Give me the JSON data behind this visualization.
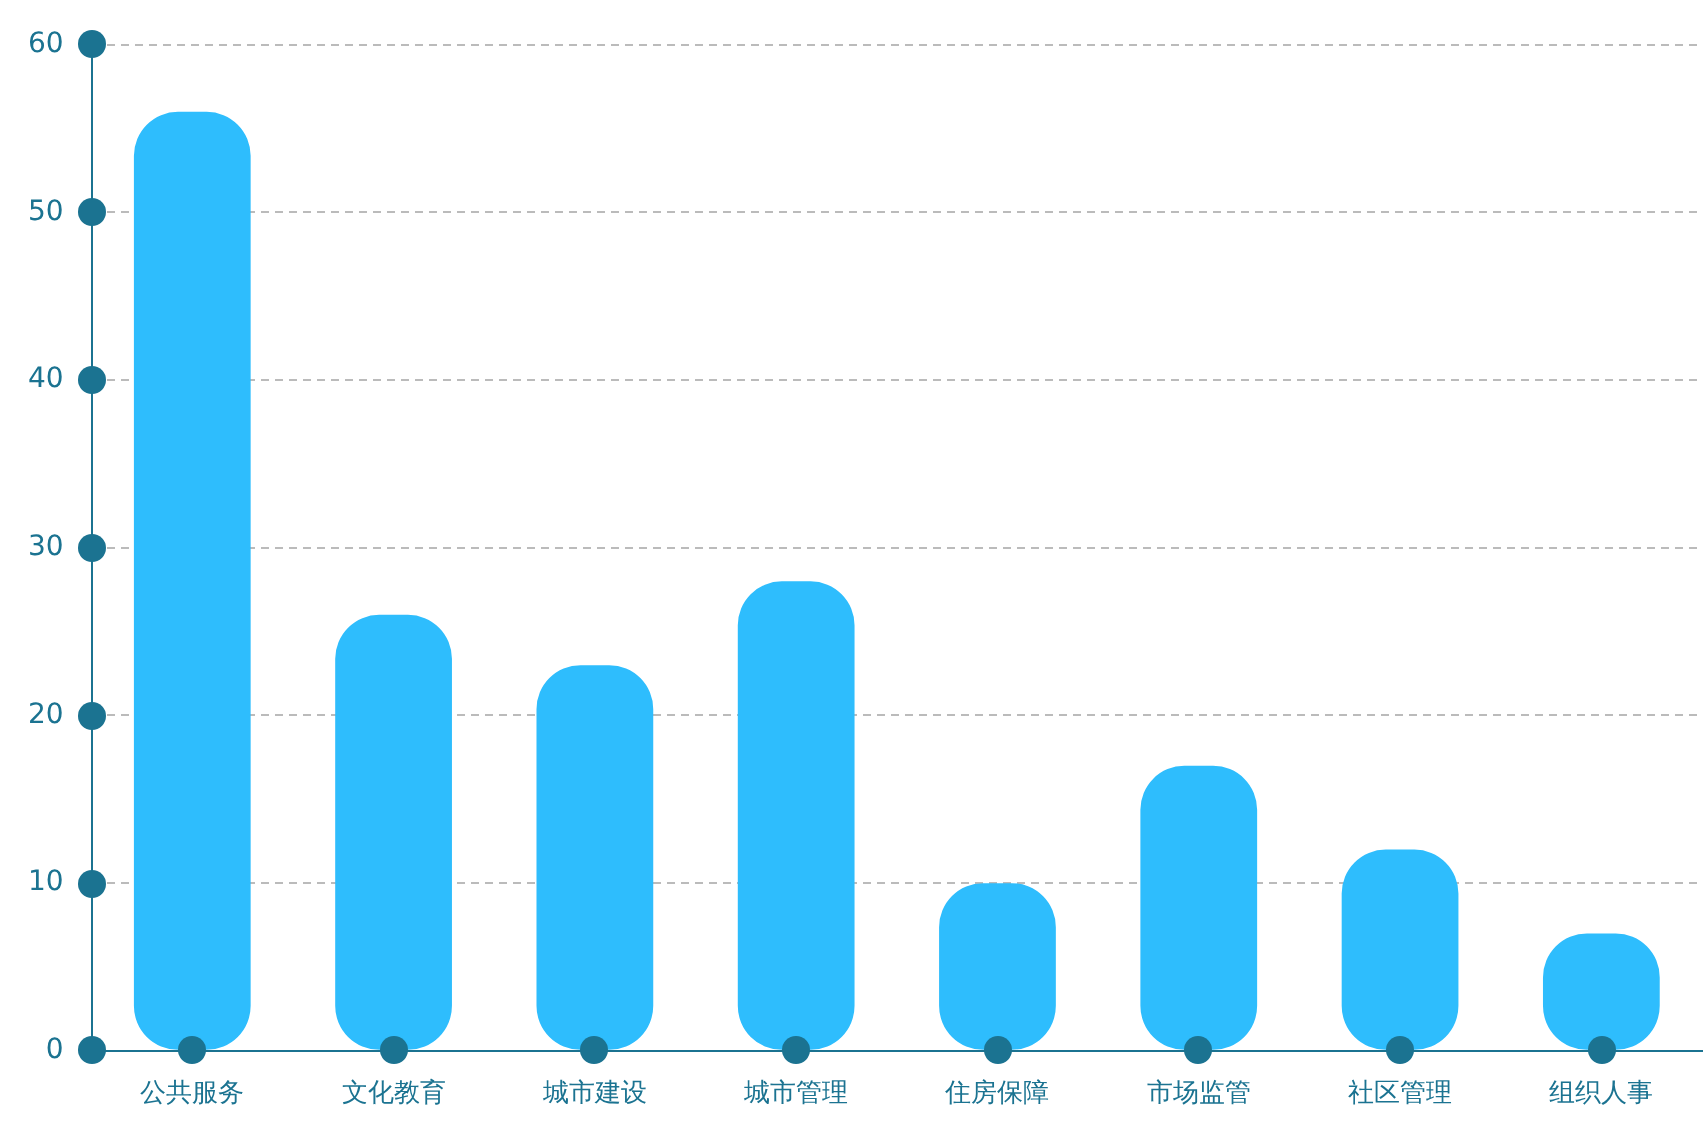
{
  "chart_data": {
    "type": "bar",
    "categories": [
      "公共服务",
      "文化教育",
      "城市建设",
      "城市管理",
      "住房保障",
      "市场监管",
      "社区管理",
      "组织人事"
    ],
    "values": [
      56,
      26,
      23,
      28,
      10,
      17,
      12,
      7
    ],
    "color": "#2ebdfd",
    "ylim": [
      0,
      60
    ],
    "yticks": [
      0,
      10,
      20,
      30,
      40,
      50,
      60
    ],
    "grid": "y",
    "legend": false
  }
}
